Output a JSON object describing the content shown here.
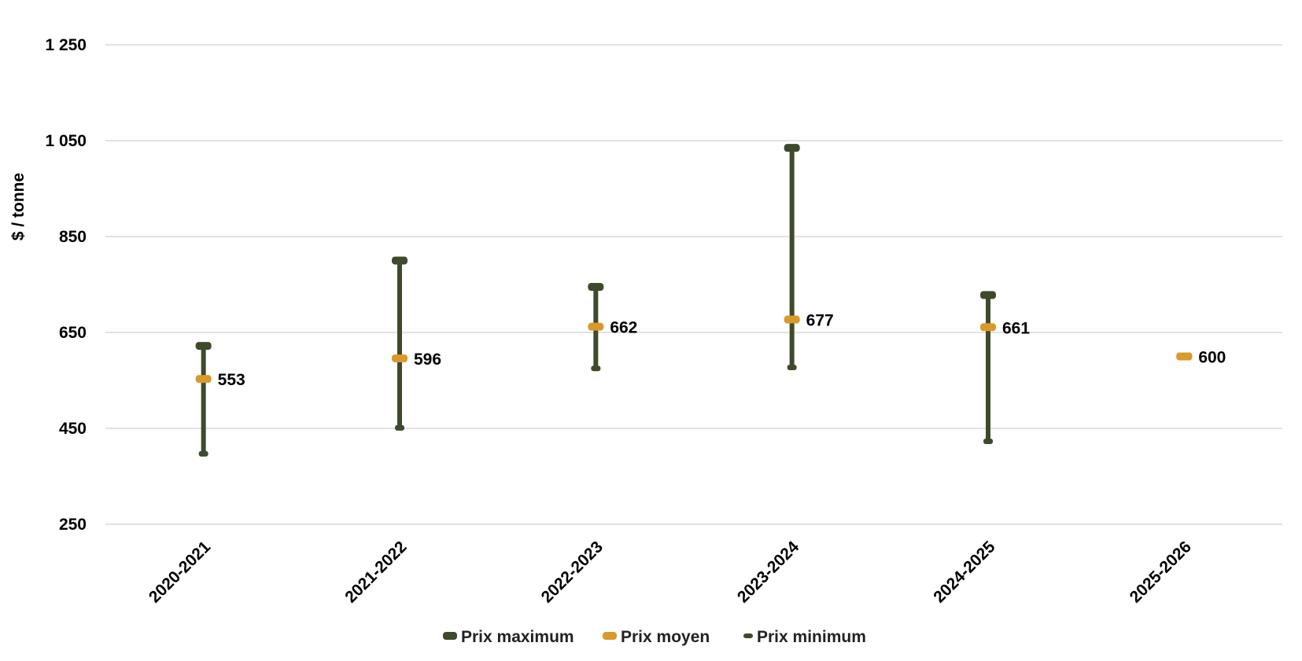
{
  "chart_data": {
    "type": "scatter",
    "style": "high-low-average range chart",
    "title": "",
    "xlabel": "",
    "ylabel": "$ / tonne",
    "ylim": [
      250,
      1250
    ],
    "yticks": [
      250,
      450,
      650,
      850,
      1050,
      1250
    ],
    "ytick_labels": [
      "250",
      "450",
      "650",
      "850",
      "1 050",
      "1 250"
    ],
    "categories": [
      "2020-2021",
      "2021-2022",
      "2022-2023",
      "2023-2024",
      "2024-2025",
      "2025-2026"
    ],
    "series": [
      {
        "name": "Prix maximum",
        "color": "#3f4a2c",
        "values": [
          622,
          800,
          745,
          1035,
          728,
          600
        ]
      },
      {
        "name": "Prix moyen",
        "color": "#d99a2b",
        "values": [
          553,
          596,
          662,
          677,
          661,
          600
        ]
      },
      {
        "name": "Prix minimum",
        "color": "#3f4a2c",
        "values": [
          397,
          451,
          575,
          577,
          423,
          600
        ]
      }
    ],
    "data_labels": [
      "553",
      "596",
      "662",
      "677",
      "661",
      "600"
    ],
    "grid": true,
    "legend": "bottom"
  }
}
